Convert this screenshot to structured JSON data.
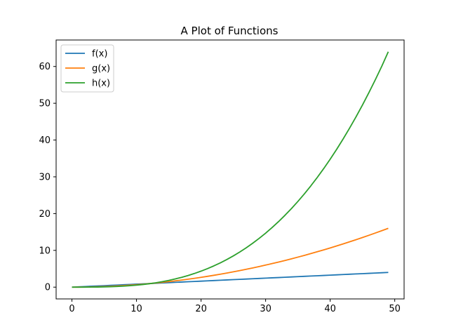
{
  "chart_data": {
    "type": "line",
    "title": "A Plot of Functions",
    "xlabel": "",
    "ylabel": "",
    "xlim": [
      -2.45,
      51.45
    ],
    "ylim": [
      -3.2,
      67.2
    ],
    "xticks": [
      0,
      10,
      20,
      30,
      40,
      50
    ],
    "yticks": [
      0,
      10,
      20,
      30,
      40,
      50,
      60
    ],
    "grid": false,
    "legend": "upper-left",
    "x": [
      0,
      1,
      2,
      3,
      4,
      5,
      6,
      7,
      8,
      9,
      10,
      11,
      12,
      13,
      14,
      15,
      16,
      17,
      18,
      19,
      20,
      21,
      22,
      23,
      24,
      25,
      26,
      27,
      28,
      29,
      30,
      31,
      32,
      33,
      34,
      35,
      36,
      37,
      38,
      39,
      40,
      41,
      42,
      43,
      44,
      45,
      46,
      47,
      48,
      49
    ],
    "series": [
      {
        "name": "f(x)",
        "color": "#1f77b4",
        "values": [
          0.0,
          0.0816,
          0.1633,
          0.2449,
          0.3265,
          0.4082,
          0.4898,
          0.5714,
          0.6531,
          0.7347,
          0.8163,
          0.898,
          0.9796,
          1.0612,
          1.1429,
          1.2245,
          1.3061,
          1.3878,
          1.4694,
          1.551,
          1.6327,
          1.7143,
          1.7959,
          1.8776,
          1.9592,
          2.0408,
          2.1224,
          2.2041,
          2.2857,
          2.3673,
          2.449,
          2.5306,
          2.6122,
          2.6939,
          2.7755,
          2.8571,
          2.9388,
          3.0204,
          3.102,
          3.1837,
          3.2653,
          3.3469,
          3.4286,
          3.5102,
          3.5918,
          3.6735,
          3.7551,
          3.8367,
          3.9184,
          4.0
        ]
      },
      {
        "name": "g(x)",
        "color": "#ff7f0e",
        "values": [
          0.0,
          0.0067,
          0.0267,
          0.06,
          0.1066,
          0.1666,
          0.2399,
          0.3265,
          0.4265,
          0.5398,
          0.6664,
          0.8063,
          0.9596,
          1.1262,
          1.3061,
          1.4994,
          1.7059,
          1.9259,
          2.1591,
          2.4056,
          2.6656,
          2.9388,
          3.2253,
          3.5252,
          3.8384,
          4.165,
          4.5048,
          4.858,
          5.2245,
          5.6043,
          5.9975,
          6.404,
          6.8238,
          7.257,
          7.7035,
          8.1633,
          8.6364,
          9.1229,
          9.6227,
          10.1358,
          10.6622,
          11.202,
          11.7551,
          12.3215,
          12.9013,
          13.4944,
          14.1008,
          14.7205,
          15.3536,
          16.0
        ]
      },
      {
        "name": "h(x)",
        "color": "#2ca02c",
        "values": [
          0.0,
          0.0005,
          0.0044,
          0.0147,
          0.0348,
          0.068,
          0.1175,
          0.1866,
          0.2786,
          0.3967,
          0.5441,
          0.7242,
          0.9402,
          1.1954,
          1.4931,
          1.8364,
          2.2287,
          2.6731,
          3.1731,
          3.7317,
          4.3523,
          5.0381,
          5.7923,
          6.6183,
          7.5193,
          8.4985,
          9.5592,
          10.7046,
          11.9381,
          13.2628,
          14.6821,
          16.1991,
          17.8171,
          19.5394,
          21.3693,
          23.3099,
          25.3646,
          27.5366,
          29.8291,
          32.2455,
          34.7889,
          37.4627,
          40.27,
          43.2141,
          46.2983,
          49.5258,
          52.8999,
          56.4238,
          60.1007,
          64.0
        ]
      }
    ]
  }
}
